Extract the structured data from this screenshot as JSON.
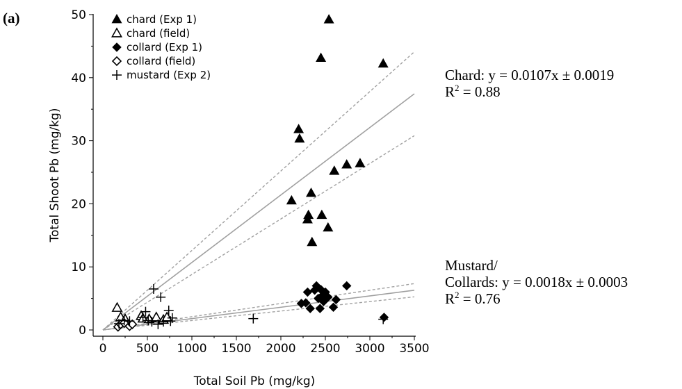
{
  "panel_label": "(a)",
  "chart_data": {
    "type": "scatter",
    "xlabel": "Total Soil Pb (mg/kg)",
    "ylabel": "Total Shoot Pb (mg/kg)",
    "xlim": [
      -100,
      3500
    ],
    "ylim": [
      -1,
      50
    ],
    "xticks": [
      0,
      500,
      1000,
      1500,
      2000,
      2500,
      3000,
      3500
    ],
    "yticks": [
      0,
      10,
      20,
      30,
      40,
      50
    ],
    "grid": false,
    "legend_position": "top-left",
    "series": [
      {
        "name": "chard (Exp 1)",
        "marker": "triangle-filled",
        "x": [
          2120,
          2200,
          2210,
          2300,
          2310,
          2340,
          2350,
          2450,
          2460,
          2530,
          2540,
          2600,
          2740,
          2890,
          3150
        ],
        "y": [
          20.5,
          31.8,
          30.3,
          17.5,
          18.2,
          21.7,
          13.9,
          43.1,
          18.2,
          16.2,
          49.2,
          25.2,
          26.2,
          26.4,
          42.2
        ]
      },
      {
        "name": "chard (field)",
        "marker": "triangle-open",
        "x": [
          160,
          200,
          250,
          430,
          450,
          520,
          600,
          680,
          720
        ],
        "y": [
          3.5,
          2.0,
          1.7,
          2.2,
          1.8,
          1.7,
          2.0,
          1.6,
          2.0
        ]
      },
      {
        "name": "collard (Exp 1)",
        "marker": "diamond-filled",
        "x": [
          2230,
          2280,
          2300,
          2330,
          2380,
          2400,
          2420,
          2440,
          2450,
          2470,
          2480,
          2500,
          2530,
          2590,
          2620,
          2740,
          3160
        ],
        "y": [
          4.2,
          4.3,
          6.0,
          3.4,
          6.3,
          7.0,
          5.0,
          3.4,
          6.4,
          5.5,
          4.5,
          6.0,
          5.2,
          3.6,
          4.8,
          7.0,
          2.0
        ]
      },
      {
        "name": "collard (field)",
        "marker": "diamond-open",
        "x": [
          170,
          200,
          240,
          300,
          330
        ],
        "y": [
          0.5,
          0.9,
          1.1,
          0.6,
          0.9
        ]
      },
      {
        "name": "mustard (Exp 2)",
        "marker": "plus",
        "x": [
          180,
          240,
          300,
          450,
          480,
          510,
          550,
          570,
          620,
          650,
          680,
          740,
          760,
          780,
          1690,
          3150
        ],
        "y": [
          1.0,
          1.5,
          1.4,
          2.0,
          2.9,
          1.5,
          1.3,
          6.5,
          0.9,
          5.2,
          1.3,
          3.1,
          1.4,
          1.9,
          1.8,
          1.7
        ]
      }
    ],
    "fits": [
      {
        "name": "Chard",
        "slope": 0.0107,
        "band": 0.0019
      },
      {
        "name": "Mustard/Collards",
        "slope": 0.0018,
        "band": 0.0003
      }
    ]
  },
  "annotations": {
    "chard_eq": "Chard: y = 0.0107x ± 0.0019",
    "chard_r2_prefix": "R",
    "chard_r2_sup": "2",
    "chard_r2_value": " = 0.88",
    "mustard_line1": "Mustard/",
    "mustard_eq": "Collards: y = 0.0018x ± 0.0003",
    "mustard_r2_prefix": "R",
    "mustard_r2_sup": "2",
    "mustard_r2_value": " = 0.76"
  }
}
